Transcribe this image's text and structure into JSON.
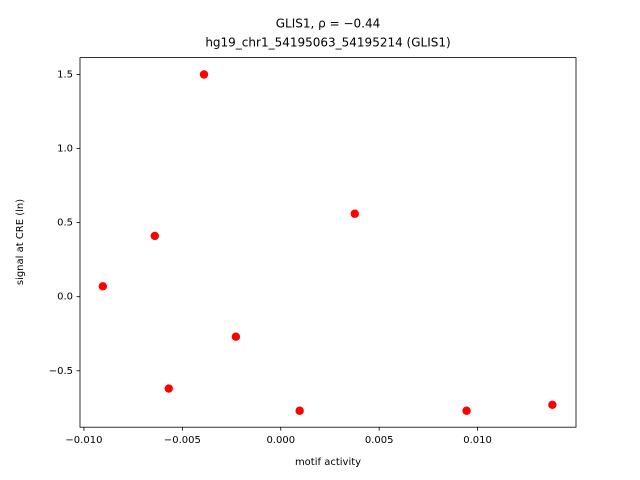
{
  "chart_data": {
    "type": "scatter",
    "title": "GLIS1, ρ = −0.44",
    "subtitle": "hg19_chr1_54195063_54195214 (GLIS1)",
    "x_label": "motif activity",
    "y_label": "signal at CRE (ln)",
    "color": "#ff0000",
    "grid": false,
    "xlim": [
      -0.0102,
      0.015
    ],
    "ylim": [
      -0.881,
      1.614
    ],
    "xticks": [
      {
        "value": -0.01,
        "label": "−0.010"
      },
      {
        "value": -0.005,
        "label": "−0.005"
      },
      {
        "value": 0,
        "label": "0.000"
      },
      0.005,
      {
        "value": 0.01,
        "label": "0.010"
      }
    ],
    "yticks": [
      {
        "value": -0.5,
        "label": "−0.5"
      },
      {
        "value": 0,
        "label": "0.0"
      },
      0.5,
      {
        "value": 1.0,
        "label": "1.0"
      },
      1.5
    ],
    "x": [
      -0.00904,
      -0.0064,
      -0.00569,
      -0.0039,
      -0.00228,
      0.00096,
      0.00376,
      0.00944,
      0.0138
    ],
    "values": [
      0.07,
      0.41,
      -0.62,
      1.5,
      -0.27,
      -0.77,
      0.56,
      -0.77,
      -0.73
    ]
  }
}
